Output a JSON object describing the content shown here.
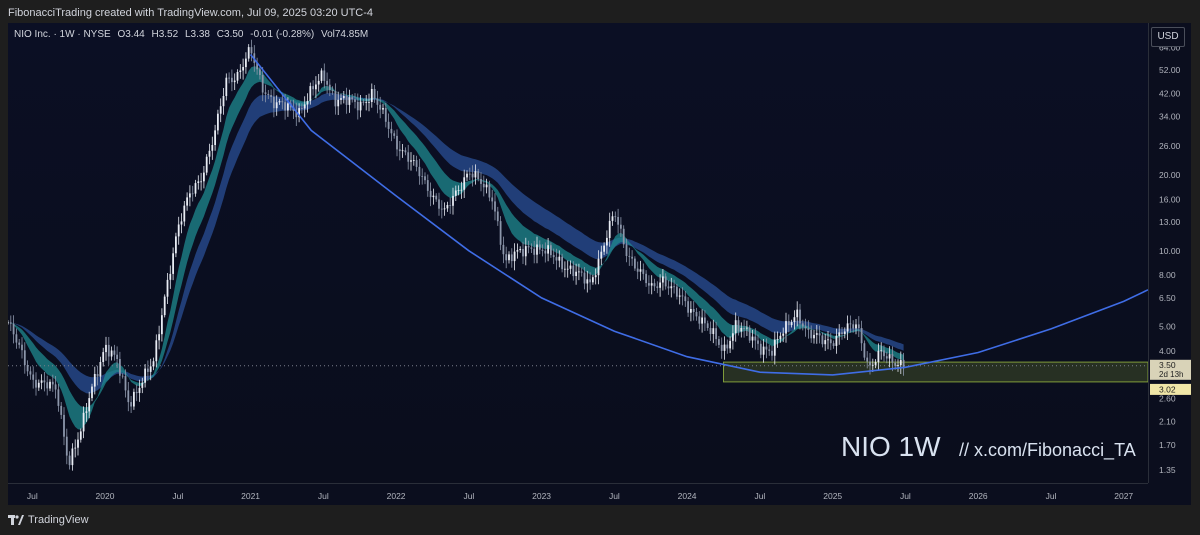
{
  "header": {
    "created_by": "FibonacciTrading created with TradingView.com, Jul 09, 2025 03:20 UTC-4"
  },
  "legend": {
    "symbol": "NIO Inc. · 1W · NYSE",
    "open": "O3.44",
    "high": "H3.52",
    "low": "L3.38",
    "close": "C3.50",
    "change": "-0.01 (-0.28%)",
    "volume": "Vol74.85M"
  },
  "currency": "USD",
  "watermark": {
    "symbol": "NIO 1W",
    "handle": "//  x.com/Fibonacci_TA"
  },
  "footer": {
    "brand": "TradingView"
  },
  "colors": {
    "background": "#0b0e1e",
    "bull": "#e8ecf4",
    "bear": "#8c96aa",
    "ribbon_fast": "#1f8a8f",
    "ribbon_slow": "#2a4f96",
    "curve": "#3f6de6",
    "zone_border": "#7f9b3a",
    "price_badge": "#d9d3b8"
  },
  "chart_data": {
    "type": "candlestick",
    "title": "NIO 1W",
    "y_scale": "log",
    "ylim": [
      1.2,
      80
    ],
    "x_range": [
      "2019-05",
      "2027-03"
    ],
    "y_ticks": [
      "84.00",
      "64.00",
      "52.00",
      "42.00",
      "34.00",
      "26.00",
      "20.00",
      "16.00",
      "13.00",
      "10.00",
      "8.00",
      "6.50",
      "5.00",
      "4.00",
      "3.50",
      "2.60",
      "2.10",
      "1.70",
      "1.35"
    ],
    "x_ticks": [
      "Jul",
      "2020",
      "Jul",
      "2021",
      "Jul",
      "2022",
      "Jul",
      "2023",
      "Jul",
      "2024",
      "Jul",
      "2025",
      "Jul",
      "2026",
      "Jul",
      "2027"
    ],
    "price_path": [
      [
        "2019-05",
        5.2
      ],
      [
        "2019-07",
        3.1
      ],
      [
        "2019-09",
        2.8
      ],
      [
        "2019-10",
        1.45
      ],
      [
        "2019-11",
        1.9
      ],
      [
        "2019-12",
        3.0
      ],
      [
        "2020-01",
        4.2
      ],
      [
        "2020-02",
        3.6
      ],
      [
        "2020-03",
        2.5
      ],
      [
        "2020-04",
        3.0
      ],
      [
        "2020-05",
        3.6
      ],
      [
        "2020-06",
        7.0
      ],
      [
        "2020-07",
        12.0
      ],
      [
        "2020-08",
        17.0
      ],
      [
        "2020-09",
        20.0
      ],
      [
        "2020-10",
        28.0
      ],
      [
        "2020-11",
        48.0
      ],
      [
        "2020-12",
        50.0
      ],
      [
        "2021-01",
        62.0
      ],
      [
        "2021-02",
        45.0
      ],
      [
        "2021-03",
        38.0
      ],
      [
        "2021-05",
        36.0
      ],
      [
        "2021-07",
        50.0
      ],
      [
        "2021-08",
        40.0
      ],
      [
        "2021-10",
        38.0
      ],
      [
        "2021-11",
        42.0
      ],
      [
        "2022-01",
        27.0
      ],
      [
        "2022-03",
        20.0
      ],
      [
        "2022-05",
        14.0
      ],
      [
        "2022-07",
        21.0
      ],
      [
        "2022-09",
        16.0
      ],
      [
        "2022-10",
        9.0
      ],
      [
        "2022-12",
        10.5
      ],
      [
        "2023-02",
        9.5
      ],
      [
        "2023-04",
        8.0
      ],
      [
        "2023-05",
        7.4
      ],
      [
        "2023-07",
        14.0
      ],
      [
        "2023-08",
        10.0
      ],
      [
        "2023-10",
        7.0
      ],
      [
        "2023-11",
        7.8
      ],
      [
        "2024-01",
        6.0
      ],
      [
        "2024-02",
        5.5
      ],
      [
        "2024-04",
        4.0
      ],
      [
        "2024-05",
        5.1
      ],
      [
        "2024-07",
        4.2
      ],
      [
        "2024-08",
        4.0
      ],
      [
        "2024-10",
        5.8
      ],
      [
        "2024-11",
        4.6
      ],
      [
        "2025-01",
        4.4
      ],
      [
        "2025-03",
        5.2
      ],
      [
        "2025-04",
        3.4
      ],
      [
        "2025-05",
        3.9
      ],
      [
        "2025-07",
        3.5
      ]
    ],
    "last_price": "3.50",
    "countdown": "2d 13h",
    "support_price": "3.02",
    "support_zone": {
      "x": [
        "2024-04",
        "2027-03"
      ],
      "y": [
        3.02,
        3.62
      ]
    },
    "curve": {
      "name": "",
      "points": [
        [
          "2021-01",
          60.0
        ],
        [
          "2021-06",
          30.0
        ],
        [
          "2022-01",
          16.5
        ],
        [
          "2022-07",
          10.0
        ],
        [
          "2023-01",
          6.5
        ],
        [
          "2023-07",
          4.8
        ],
        [
          "2024-01",
          3.8
        ],
        [
          "2024-07",
          3.3
        ],
        [
          "2025-01",
          3.22
        ],
        [
          "2025-07",
          3.45
        ],
        [
          "2026-01",
          3.95
        ],
        [
          "2026-07",
          4.9
        ],
        [
          "2027-01",
          6.3
        ],
        [
          "2027-03",
          7.0
        ]
      ]
    }
  }
}
